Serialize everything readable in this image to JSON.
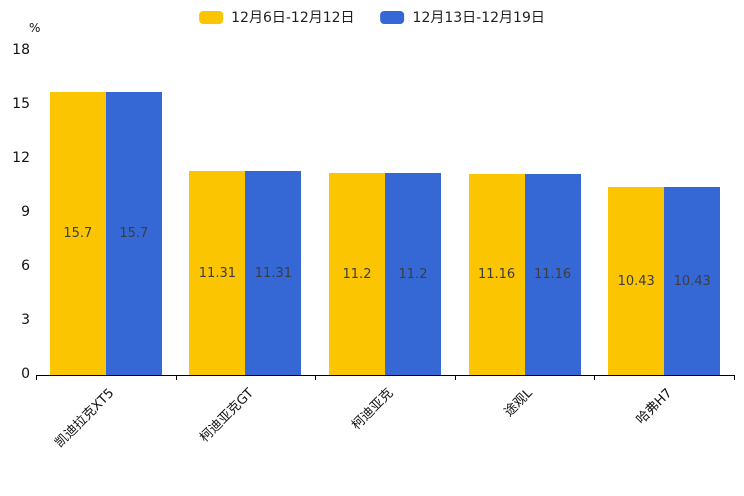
{
  "chart_data": {
    "type": "bar",
    "title": "",
    "unit_label": "%",
    "categories": [
      "凯迪拉克XT5",
      "柯迪亚克GT",
      "柯迪亚克",
      "途观L",
      "哈弗H7"
    ],
    "series": [
      {
        "name": "12月6日-12月12日",
        "color": "#FCC502",
        "values": [
          15.7,
          11.31,
          11.2,
          11.16,
          10.43
        ]
      },
      {
        "name": "12月13日-12月19日",
        "color": "#3568D4",
        "values": [
          15.7,
          11.31,
          11.2,
          11.16,
          10.43
        ]
      }
    ],
    "value_labels": [
      [
        "15.7",
        "11.31",
        "11.2",
        "11.16",
        "10.43"
      ],
      [
        "15.7",
        "11.31",
        "11.2",
        "11.16",
        "10.43"
      ]
    ],
    "y_ticks": [
      0,
      3,
      6,
      9,
      12,
      15,
      18
    ],
    "ylim": [
      0,
      18
    ],
    "xlabel": "",
    "ylabel": "%",
    "grid": false,
    "legend_position": "top",
    "x_label_rotation_deg": 45
  },
  "colors": {
    "axis": "#000000",
    "tick_text": "#111111",
    "value_text": "#3d3d3d",
    "background": "#ffffff"
  }
}
